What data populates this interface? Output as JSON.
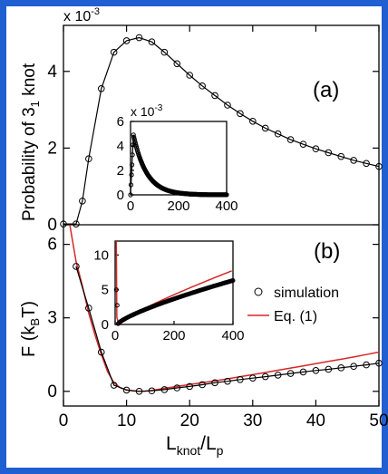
{
  "panel_labels": {
    "a": "(a)",
    "b": "(b)"
  },
  "multipliers": {
    "main_a": "x 10",
    "inset_a": "x 10",
    "exponent": "-3"
  },
  "labels": {
    "ylabel_a": "Probability of 3",
    "ylabel_a_sub": "1",
    "ylabel_a_tail": " knot",
    "ylabel_b": "F (k",
    "ylabel_b_sub": "B",
    "ylabel_b_tail": "T)",
    "xlabel_main": "L",
    "xlabel_sub1": "knot",
    "xlabel_mid": "/L",
    "xlabel_sub2": "p"
  },
  "legend": {
    "simulation": "simulation",
    "eq1": "Eq. (1)"
  },
  "colors": {
    "frame": "#1f5fd1",
    "eq_line": "#d62728",
    "data": "#000000"
  },
  "chart_data": [
    {
      "type": "line",
      "panel": "(a)",
      "xlim": [
        0,
        50
      ],
      "ylim": [
        0,
        5.2
      ],
      "y_multiplier": "x 10^-3",
      "yticks": [
        "0",
        "2",
        "4"
      ],
      "x": [
        0,
        1,
        2,
        3,
        4,
        5,
        6,
        7,
        8,
        9,
        10,
        11,
        12,
        13,
        14,
        15,
        16,
        17,
        18,
        19,
        20,
        21,
        22,
        23,
        24,
        25,
        26,
        27,
        28,
        29,
        30,
        31,
        32,
        33,
        34,
        35,
        36,
        37,
        38,
        39,
        40,
        41,
        42,
        43,
        44,
        45,
        46,
        47,
        48,
        49,
        50
      ],
      "series": [
        {
          "name": "simulation",
          "marker_x": [
            2,
            3,
            4,
            6,
            8,
            10,
            12,
            14,
            16,
            18,
            20,
            22,
            24,
            26,
            28,
            30,
            32,
            34,
            36,
            38,
            40,
            42,
            44,
            46,
            48,
            50
          ],
          "marker_y": [
            0.02,
            0.62,
            1.72,
            3.55,
            4.5,
            4.8,
            4.88,
            4.77,
            4.5,
            4.2,
            3.9,
            3.62,
            3.37,
            3.12,
            2.9,
            2.7,
            2.52,
            2.37,
            2.22,
            2.1,
            1.98,
            1.88,
            1.78,
            1.68,
            1.6,
            1.52
          ]
        }
      ]
    },
    {
      "type": "scatter",
      "panel": "(a) inset",
      "xlim": [
        0,
        400
      ],
      "ylim": [
        0,
        6
      ],
      "y_multiplier": "x 10^-3",
      "xticks": [
        "0",
        "200",
        "400"
      ],
      "yticks": [
        "0",
        "2",
        "4",
        "6"
      ],
      "series": [
        {
          "name": "simulation"
        }
      ]
    },
    {
      "type": "line",
      "panel": "(b)",
      "xlim": [
        0,
        50
      ],
      "ylim": [
        -0.6,
        6.8
      ],
      "xticks": [
        "0",
        "10",
        "20",
        "30",
        "40",
        "50"
      ],
      "yticks": [
        "0",
        "3",
        "6"
      ],
      "series": [
        {
          "name": "simulation",
          "marker_x": [
            2,
            4,
            6,
            8,
            10,
            12,
            14,
            16,
            18,
            20,
            22,
            24,
            26,
            28,
            30,
            32,
            34,
            36,
            38,
            40,
            42,
            44,
            46,
            48,
            50
          ],
          "marker_y": [
            5.1,
            3.4,
            1.6,
            0.25,
            0.05,
            0.0,
            0.02,
            0.07,
            0.14,
            0.2,
            0.27,
            0.35,
            0.41,
            0.48,
            0.54,
            0.6,
            0.66,
            0.73,
            0.79,
            0.85,
            0.9,
            0.96,
            1.02,
            1.08,
            1.15
          ]
        },
        {
          "name": "Eq. (1)",
          "x": [
            1,
            2,
            3,
            4,
            5,
            6,
            7,
            8,
            9,
            10,
            11,
            12,
            13,
            14,
            15,
            16,
            18,
            20,
            22,
            24,
            26,
            28,
            30,
            32,
            34,
            36,
            38,
            40,
            42,
            44,
            46,
            48,
            50
          ],
          "y": [
            7.3,
            5.3,
            4.3,
            3.2,
            2.3,
            1.5,
            0.8,
            0.35,
            0.15,
            0.06,
            0.02,
            0.0,
            0.01,
            0.04,
            0.08,
            0.12,
            0.2,
            0.28,
            0.35,
            0.43,
            0.51,
            0.6,
            0.68,
            0.77,
            0.86,
            0.95,
            1.04,
            1.13,
            1.22,
            1.31,
            1.4,
            1.5,
            1.6
          ]
        }
      ]
    },
    {
      "type": "line",
      "panel": "(b) inset",
      "xlim": [
        0,
        400
      ],
      "ylim": [
        0,
        12
      ],
      "xticks": [
        "0",
        "200",
        "400"
      ],
      "yticks": [
        "0",
        "5",
        "10"
      ],
      "series": [
        {
          "name": "simulation"
        },
        {
          "name": "Eq. (1)"
        }
      ]
    }
  ]
}
